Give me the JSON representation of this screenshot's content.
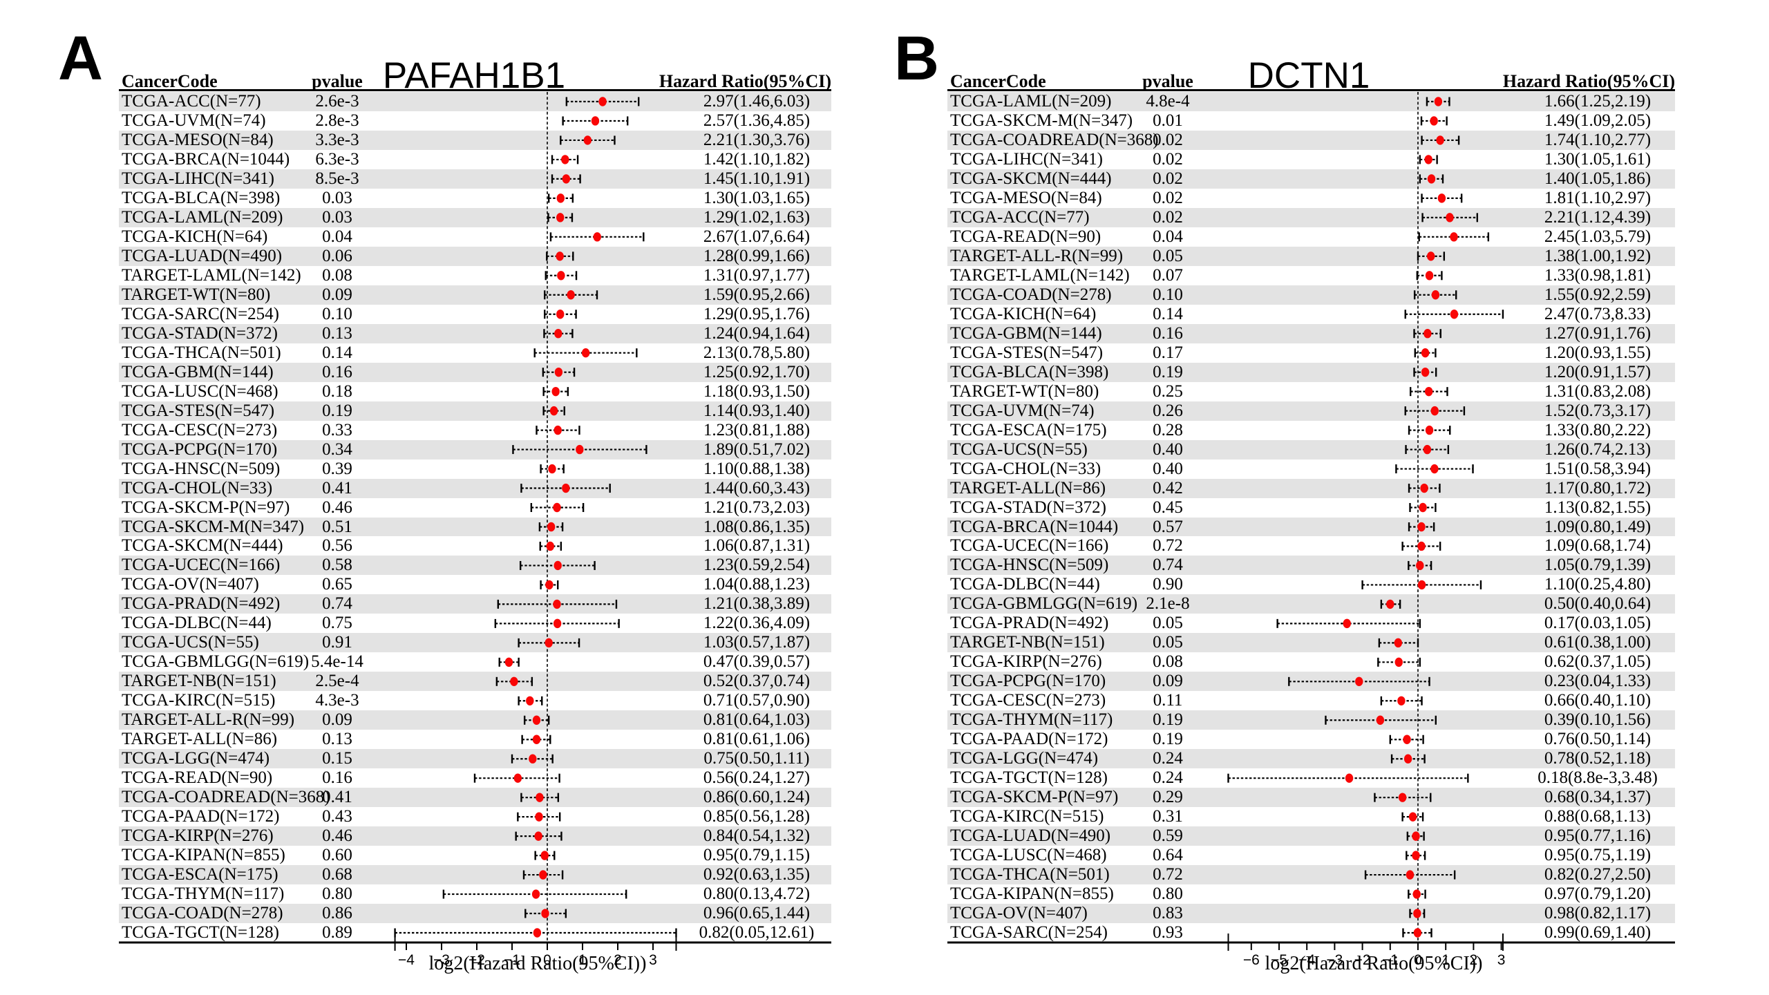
{
  "figure": {
    "background": "#ffffff",
    "marker_color": "#f90606",
    "stripe_color": "#e3e3e3",
    "line_color": "#000000"
  },
  "chart_data": [
    {
      "type": "scatter",
      "subtype": "forest-plot",
      "panel_label": "A",
      "title": "PAFAH1B1",
      "columns": {
        "cancer_code": "CancerCode",
        "pvalue": "pvalue",
        "hazard_ratio": "Hazard Ratio(95%CI)"
      },
      "xlabel": "log2(Hazard Ratio(95%CI))",
      "x_ticks": [
        -4,
        -3,
        -2,
        -1,
        0,
        1,
        2,
        3
      ],
      "x_scale": "log2 of hazard ratio",
      "grid": false,
      "legend": "none",
      "rows": [
        {
          "code": "TCGA-ACC(N=77)",
          "pvalue": "2.6e-3",
          "hr_text": "2.97(1.46,6.03)",
          "hr": 2.97,
          "lo": 1.46,
          "hi": 6.03
        },
        {
          "code": "TCGA-UVM(N=74)",
          "pvalue": "2.8e-3",
          "hr_text": "2.57(1.36,4.85)",
          "hr": 2.57,
          "lo": 1.36,
          "hi": 4.85
        },
        {
          "code": "TCGA-MESO(N=84)",
          "pvalue": "3.3e-3",
          "hr_text": "2.21(1.30,3.76)",
          "hr": 2.21,
          "lo": 1.3,
          "hi": 3.76
        },
        {
          "code": "TCGA-BRCA(N=1044)",
          "pvalue": "6.3e-3",
          "hr_text": "1.42(1.10,1.82)",
          "hr": 1.42,
          "lo": 1.1,
          "hi": 1.82
        },
        {
          "code": "TCGA-LIHC(N=341)",
          "pvalue": "8.5e-3",
          "hr_text": "1.45(1.10,1.91)",
          "hr": 1.45,
          "lo": 1.1,
          "hi": 1.91
        },
        {
          "code": "TCGA-BLCA(N=398)",
          "pvalue": "0.03",
          "hr_text": "1.30(1.03,1.65)",
          "hr": 1.3,
          "lo": 1.03,
          "hi": 1.65
        },
        {
          "code": "TCGA-LAML(N=209)",
          "pvalue": "0.03",
          "hr_text": "1.29(1.02,1.63)",
          "hr": 1.29,
          "lo": 1.02,
          "hi": 1.63
        },
        {
          "code": "TCGA-KICH(N=64)",
          "pvalue": "0.04",
          "hr_text": "2.67(1.07,6.64)",
          "hr": 2.67,
          "lo": 1.07,
          "hi": 6.64
        },
        {
          "code": "TCGA-LUAD(N=490)",
          "pvalue": "0.06",
          "hr_text": "1.28(0.99,1.66)",
          "hr": 1.28,
          "lo": 0.99,
          "hi": 1.66
        },
        {
          "code": "TARGET-LAML(N=142)",
          "pvalue": "0.08",
          "hr_text": "1.31(0.97,1.77)",
          "hr": 1.31,
          "lo": 0.97,
          "hi": 1.77
        },
        {
          "code": "TARGET-WT(N=80)",
          "pvalue": "0.09",
          "hr_text": "1.59(0.95,2.66)",
          "hr": 1.59,
          "lo": 0.95,
          "hi": 2.66
        },
        {
          "code": "TCGA-SARC(N=254)",
          "pvalue": "0.10",
          "hr_text": "1.29(0.95,1.76)",
          "hr": 1.29,
          "lo": 0.95,
          "hi": 1.76
        },
        {
          "code": "TCGA-STAD(N=372)",
          "pvalue": "0.13",
          "hr_text": "1.24(0.94,1.64)",
          "hr": 1.24,
          "lo": 0.94,
          "hi": 1.64
        },
        {
          "code": "TCGA-THCA(N=501)",
          "pvalue": "0.14",
          "hr_text": "2.13(0.78,5.80)",
          "hr": 2.13,
          "lo": 0.78,
          "hi": 5.8
        },
        {
          "code": "TCGA-GBM(N=144)",
          "pvalue": "0.16",
          "hr_text": "1.25(0.92,1.70)",
          "hr": 1.25,
          "lo": 0.92,
          "hi": 1.7
        },
        {
          "code": "TCGA-LUSC(N=468)",
          "pvalue": "0.18",
          "hr_text": "1.18(0.93,1.50)",
          "hr": 1.18,
          "lo": 0.93,
          "hi": 1.5
        },
        {
          "code": "TCGA-STES(N=547)",
          "pvalue": "0.19",
          "hr_text": "1.14(0.93,1.40)",
          "hr": 1.14,
          "lo": 0.93,
          "hi": 1.4
        },
        {
          "code": "TCGA-CESC(N=273)",
          "pvalue": "0.33",
          "hr_text": "1.23(0.81,1.88)",
          "hr": 1.23,
          "lo": 0.81,
          "hi": 1.88
        },
        {
          "code": "TCGA-PCPG(N=170)",
          "pvalue": "0.34",
          "hr_text": "1.89(0.51,7.02)",
          "hr": 1.89,
          "lo": 0.51,
          "hi": 7.02
        },
        {
          "code": "TCGA-HNSC(N=509)",
          "pvalue": "0.39",
          "hr_text": "1.10(0.88,1.38)",
          "hr": 1.1,
          "lo": 0.88,
          "hi": 1.38
        },
        {
          "code": "TCGA-CHOL(N=33)",
          "pvalue": "0.41",
          "hr_text": "1.44(0.60,3.43)",
          "hr": 1.44,
          "lo": 0.6,
          "hi": 3.43
        },
        {
          "code": "TCGA-SKCM-P(N=97)",
          "pvalue": "0.46",
          "hr_text": "1.21(0.73,2.03)",
          "hr": 1.21,
          "lo": 0.73,
          "hi": 2.03
        },
        {
          "code": "TCGA-SKCM-M(N=347)",
          "pvalue": "0.51",
          "hr_text": "1.08(0.86,1.35)",
          "hr": 1.08,
          "lo": 0.86,
          "hi": 1.35
        },
        {
          "code": "TCGA-SKCM(N=444)",
          "pvalue": "0.56",
          "hr_text": "1.06(0.87,1.31)",
          "hr": 1.06,
          "lo": 0.87,
          "hi": 1.31
        },
        {
          "code": "TCGA-UCEC(N=166)",
          "pvalue": "0.58",
          "hr_text": "1.23(0.59,2.54)",
          "hr": 1.23,
          "lo": 0.59,
          "hi": 2.54
        },
        {
          "code": "TCGA-OV(N=407)",
          "pvalue": "0.65",
          "hr_text": "1.04(0.88,1.23)",
          "hr": 1.04,
          "lo": 0.88,
          "hi": 1.23
        },
        {
          "code": "TCGA-PRAD(N=492)",
          "pvalue": "0.74",
          "hr_text": "1.21(0.38,3.89)",
          "hr": 1.21,
          "lo": 0.38,
          "hi": 3.89
        },
        {
          "code": "TCGA-DLBC(N=44)",
          "pvalue": "0.75",
          "hr_text": "1.22(0.36,4.09)",
          "hr": 1.22,
          "lo": 0.36,
          "hi": 4.09
        },
        {
          "code": "TCGA-UCS(N=55)",
          "pvalue": "0.91",
          "hr_text": "1.03(0.57,1.87)",
          "hr": 1.03,
          "lo": 0.57,
          "hi": 1.87
        },
        {
          "code": "TCGA-GBMLGG(N=619)",
          "pvalue": "5.4e-14",
          "hr_text": "0.47(0.39,0.57)",
          "hr": 0.47,
          "lo": 0.39,
          "hi": 0.57
        },
        {
          "code": "TARGET-NB(N=151)",
          "pvalue": "2.5e-4",
          "hr_text": "0.52(0.37,0.74)",
          "hr": 0.52,
          "lo": 0.37,
          "hi": 0.74
        },
        {
          "code": "TCGA-KIRC(N=515)",
          "pvalue": "4.3e-3",
          "hr_text": "0.71(0.57,0.90)",
          "hr": 0.71,
          "lo": 0.57,
          "hi": 0.9
        },
        {
          "code": "TARGET-ALL-R(N=99)",
          "pvalue": "0.09",
          "hr_text": "0.81(0.64,1.03)",
          "hr": 0.81,
          "lo": 0.64,
          "hi": 1.03
        },
        {
          "code": "TARGET-ALL(N=86)",
          "pvalue": "0.13",
          "hr_text": "0.81(0.61,1.06)",
          "hr": 0.81,
          "lo": 0.61,
          "hi": 1.06
        },
        {
          "code": "TCGA-LGG(N=474)",
          "pvalue": "0.15",
          "hr_text": "0.75(0.50,1.11)",
          "hr": 0.75,
          "lo": 0.5,
          "hi": 1.11
        },
        {
          "code": "TCGA-READ(N=90)",
          "pvalue": "0.16",
          "hr_text": "0.56(0.24,1.27)",
          "hr": 0.56,
          "lo": 0.24,
          "hi": 1.27
        },
        {
          "code": "TCGA-COADREAD(N=368)",
          "pvalue": "0.41",
          "hr_text": "0.86(0.60,1.24)",
          "hr": 0.86,
          "lo": 0.6,
          "hi": 1.24
        },
        {
          "code": "TCGA-PAAD(N=172)",
          "pvalue": "0.43",
          "hr_text": "0.85(0.56,1.28)",
          "hr": 0.85,
          "lo": 0.56,
          "hi": 1.28
        },
        {
          "code": "TCGA-KIRP(N=276)",
          "pvalue": "0.46",
          "hr_text": "0.84(0.54,1.32)",
          "hr": 0.84,
          "lo": 0.54,
          "hi": 1.32
        },
        {
          "code": "TCGA-KIPAN(N=855)",
          "pvalue": "0.60",
          "hr_text": "0.95(0.79,1.15)",
          "hr": 0.95,
          "lo": 0.79,
          "hi": 1.15
        },
        {
          "code": "TCGA-ESCA(N=175)",
          "pvalue": "0.68",
          "hr_text": "0.92(0.63,1.35)",
          "hr": 0.92,
          "lo": 0.63,
          "hi": 1.35
        },
        {
          "code": "TCGA-THYM(N=117)",
          "pvalue": "0.80",
          "hr_text": "0.80(0.13,4.72)",
          "hr": 0.8,
          "lo": 0.13,
          "hi": 4.72
        },
        {
          "code": "TCGA-COAD(N=278)",
          "pvalue": "0.86",
          "hr_text": "0.96(0.65,1.44)",
          "hr": 0.96,
          "lo": 0.65,
          "hi": 1.44
        },
        {
          "code": "TCGA-TGCT(N=128)",
          "pvalue": "0.89",
          "hr_text": "0.82(0.05,12.61)",
          "hr": 0.82,
          "lo": 0.05,
          "hi": 12.61
        }
      ]
    },
    {
      "type": "scatter",
      "subtype": "forest-plot",
      "panel_label": "B",
      "title": "DCTN1",
      "columns": {
        "cancer_code": "CancerCode",
        "pvalue": "pvalue",
        "hazard_ratio": "Hazard Ratio(95%CI)"
      },
      "xlabel": "log2(Hazard Ratio(95%CI))",
      "x_ticks": [
        -6,
        -5,
        -4,
        -3,
        -2,
        -1,
        0,
        1,
        2,
        3
      ],
      "x_scale": "log2 of hazard ratio",
      "grid": false,
      "legend": "none",
      "rows": [
        {
          "code": "TCGA-LAML(N=209)",
          "pvalue": "4.8e-4",
          "hr_text": "1.66(1.25,2.19)",
          "hr": 1.66,
          "lo": 1.25,
          "hi": 2.19
        },
        {
          "code": "TCGA-SKCM-M(N=347)",
          "pvalue": "0.01",
          "hr_text": "1.49(1.09,2.05)",
          "hr": 1.49,
          "lo": 1.09,
          "hi": 2.05
        },
        {
          "code": "TCGA-COADREAD(N=368)",
          "pvalue": "0.02",
          "hr_text": "1.74(1.10,2.77)",
          "hr": 1.74,
          "lo": 1.1,
          "hi": 2.77
        },
        {
          "code": "TCGA-LIHC(N=341)",
          "pvalue": "0.02",
          "hr_text": "1.30(1.05,1.61)",
          "hr": 1.3,
          "lo": 1.05,
          "hi": 1.61
        },
        {
          "code": "TCGA-SKCM(N=444)",
          "pvalue": "0.02",
          "hr_text": "1.40(1.05,1.86)",
          "hr": 1.4,
          "lo": 1.05,
          "hi": 1.86
        },
        {
          "code": "TCGA-MESO(N=84)",
          "pvalue": "0.02",
          "hr_text": "1.81(1.10,2.97)",
          "hr": 1.81,
          "lo": 1.1,
          "hi": 2.97
        },
        {
          "code": "TCGA-ACC(N=77)",
          "pvalue": "0.02",
          "hr_text": "2.21(1.12,4.39)",
          "hr": 2.21,
          "lo": 1.12,
          "hi": 4.39
        },
        {
          "code": "TCGA-READ(N=90)",
          "pvalue": "0.04",
          "hr_text": "2.45(1.03,5.79)",
          "hr": 2.45,
          "lo": 1.03,
          "hi": 5.79
        },
        {
          "code": "TARGET-ALL-R(N=99)",
          "pvalue": "0.05",
          "hr_text": "1.38(1.00,1.92)",
          "hr": 1.38,
          "lo": 1.0,
          "hi": 1.92
        },
        {
          "code": "TARGET-LAML(N=142)",
          "pvalue": "0.07",
          "hr_text": "1.33(0.98,1.81)",
          "hr": 1.33,
          "lo": 0.98,
          "hi": 1.81
        },
        {
          "code": "TCGA-COAD(N=278)",
          "pvalue": "0.10",
          "hr_text": "1.55(0.92,2.59)",
          "hr": 1.55,
          "lo": 0.92,
          "hi": 2.59
        },
        {
          "code": "TCGA-KICH(N=64)",
          "pvalue": "0.14",
          "hr_text": "2.47(0.73,8.33)",
          "hr": 2.47,
          "lo": 0.73,
          "hi": 8.33
        },
        {
          "code": "TCGA-GBM(N=144)",
          "pvalue": "0.16",
          "hr_text": "1.27(0.91,1.76)",
          "hr": 1.27,
          "lo": 0.91,
          "hi": 1.76
        },
        {
          "code": "TCGA-STES(N=547)",
          "pvalue": "0.17",
          "hr_text": "1.20(0.93,1.55)",
          "hr": 1.2,
          "lo": 0.93,
          "hi": 1.55
        },
        {
          "code": "TCGA-BLCA(N=398)",
          "pvalue": "0.19",
          "hr_text": "1.20(0.91,1.57)",
          "hr": 1.2,
          "lo": 0.91,
          "hi": 1.57
        },
        {
          "code": "TARGET-WT(N=80)",
          "pvalue": "0.25",
          "hr_text": "1.31(0.83,2.08)",
          "hr": 1.31,
          "lo": 0.83,
          "hi": 2.08
        },
        {
          "code": "TCGA-UVM(N=74)",
          "pvalue": "0.26",
          "hr_text": "1.52(0.73,3.17)",
          "hr": 1.52,
          "lo": 0.73,
          "hi": 3.17
        },
        {
          "code": "TCGA-ESCA(N=175)",
          "pvalue": "0.28",
          "hr_text": "1.33(0.80,2.22)",
          "hr": 1.33,
          "lo": 0.8,
          "hi": 2.22
        },
        {
          "code": "TCGA-UCS(N=55)",
          "pvalue": "0.40",
          "hr_text": "1.26(0.74,2.13)",
          "hr": 1.26,
          "lo": 0.74,
          "hi": 2.13
        },
        {
          "code": "TCGA-CHOL(N=33)",
          "pvalue": "0.40",
          "hr_text": "1.51(0.58,3.94)",
          "hr": 1.51,
          "lo": 0.58,
          "hi": 3.94
        },
        {
          "code": "TARGET-ALL(N=86)",
          "pvalue": "0.42",
          "hr_text": "1.17(0.80,1.72)",
          "hr": 1.17,
          "lo": 0.8,
          "hi": 1.72
        },
        {
          "code": "TCGA-STAD(N=372)",
          "pvalue": "0.45",
          "hr_text": "1.13(0.82,1.55)",
          "hr": 1.13,
          "lo": 0.82,
          "hi": 1.55
        },
        {
          "code": "TCGA-BRCA(N=1044)",
          "pvalue": "0.57",
          "hr_text": "1.09(0.80,1.49)",
          "hr": 1.09,
          "lo": 0.8,
          "hi": 1.49
        },
        {
          "code": "TCGA-UCEC(N=166)",
          "pvalue": "0.72",
          "hr_text": "1.09(0.68,1.74)",
          "hr": 1.09,
          "lo": 0.68,
          "hi": 1.74
        },
        {
          "code": "TCGA-HNSC(N=509)",
          "pvalue": "0.74",
          "hr_text": "1.05(0.79,1.39)",
          "hr": 1.05,
          "lo": 0.79,
          "hi": 1.39
        },
        {
          "code": "TCGA-DLBC(N=44)",
          "pvalue": "0.90",
          "hr_text": "1.10(0.25,4.80)",
          "hr": 1.1,
          "lo": 0.25,
          "hi": 4.8
        },
        {
          "code": "TCGA-GBMLGG(N=619)",
          "pvalue": "2.1e-8",
          "hr_text": "0.50(0.40,0.64)",
          "hr": 0.5,
          "lo": 0.4,
          "hi": 0.64
        },
        {
          "code": "TCGA-PRAD(N=492)",
          "pvalue": "0.05",
          "hr_text": "0.17(0.03,1.05)",
          "hr": 0.17,
          "lo": 0.03,
          "hi": 1.05
        },
        {
          "code": "TARGET-NB(N=151)",
          "pvalue": "0.05",
          "hr_text": "0.61(0.38,1.00)",
          "hr": 0.61,
          "lo": 0.38,
          "hi": 1.0
        },
        {
          "code": "TCGA-KIRP(N=276)",
          "pvalue": "0.08",
          "hr_text": "0.62(0.37,1.05)",
          "hr": 0.62,
          "lo": 0.37,
          "hi": 1.05
        },
        {
          "code": "TCGA-PCPG(N=170)",
          "pvalue": "0.09",
          "hr_text": "0.23(0.04,1.33)",
          "hr": 0.23,
          "lo": 0.04,
          "hi": 1.33
        },
        {
          "code": "TCGA-CESC(N=273)",
          "pvalue": "0.11",
          "hr_text": "0.66(0.40,1.10)",
          "hr": 0.66,
          "lo": 0.4,
          "hi": 1.1
        },
        {
          "code": "TCGA-THYM(N=117)",
          "pvalue": "0.19",
          "hr_text": "0.39(0.10,1.56)",
          "hr": 0.39,
          "lo": 0.1,
          "hi": 1.56
        },
        {
          "code": "TCGA-PAAD(N=172)",
          "pvalue": "0.19",
          "hr_text": "0.76(0.50,1.14)",
          "hr": 0.76,
          "lo": 0.5,
          "hi": 1.14
        },
        {
          "code": "TCGA-LGG(N=474)",
          "pvalue": "0.24",
          "hr_text": "0.78(0.52,1.18)",
          "hr": 0.78,
          "lo": 0.52,
          "hi": 1.18
        },
        {
          "code": "TCGA-TGCT(N=128)",
          "pvalue": "0.24",
          "hr_text": "0.18(8.8e-3,3.48)",
          "hr": 0.18,
          "lo": 0.0088,
          "hi": 3.48
        },
        {
          "code": "TCGA-SKCM-P(N=97)",
          "pvalue": "0.29",
          "hr_text": "0.68(0.34,1.37)",
          "hr": 0.68,
          "lo": 0.34,
          "hi": 1.37
        },
        {
          "code": "TCGA-KIRC(N=515)",
          "pvalue": "0.31",
          "hr_text": "0.88(0.68,1.13)",
          "hr": 0.88,
          "lo": 0.68,
          "hi": 1.13
        },
        {
          "code": "TCGA-LUAD(N=490)",
          "pvalue": "0.59",
          "hr_text": "0.95(0.77,1.16)",
          "hr": 0.95,
          "lo": 0.77,
          "hi": 1.16
        },
        {
          "code": "TCGA-LUSC(N=468)",
          "pvalue": "0.64",
          "hr_text": "0.95(0.75,1.19)",
          "hr": 0.95,
          "lo": 0.75,
          "hi": 1.19
        },
        {
          "code": "TCGA-THCA(N=501)",
          "pvalue": "0.72",
          "hr_text": "0.82(0.27,2.50)",
          "hr": 0.82,
          "lo": 0.27,
          "hi": 2.5
        },
        {
          "code": "TCGA-KIPAN(N=855)",
          "pvalue": "0.80",
          "hr_text": "0.97(0.79,1.20)",
          "hr": 0.97,
          "lo": 0.79,
          "hi": 1.2
        },
        {
          "code": "TCGA-OV(N=407)",
          "pvalue": "0.83",
          "hr_text": "0.98(0.82,1.17)",
          "hr": 0.98,
          "lo": 0.82,
          "hi": 1.17
        },
        {
          "code": "TCGA-SARC(N=254)",
          "pvalue": "0.93",
          "hr_text": "0.99(0.69,1.40)",
          "hr": 0.99,
          "lo": 0.69,
          "hi": 1.4
        }
      ]
    }
  ]
}
